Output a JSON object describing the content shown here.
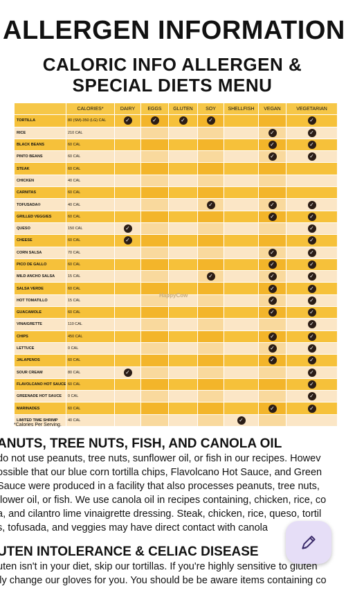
{
  "page_title": "ALLERGEN INFORMATION",
  "menu_title_line1": "CALORIC INFO ALLERGEN &",
  "menu_title_line2": "SPECIAL DIETS MENU",
  "table": {
    "headers": [
      "",
      "CALORIES*",
      "DAIRY",
      "EGGS",
      "GLUTEN",
      "SOY",
      "SHELLFISH",
      "VEGAN",
      "VEGETARIAN"
    ],
    "rows": [
      {
        "item": "TORTILLA",
        "cal": "80 (SM)-350 (LG) CAL",
        "flags": [
          1,
          1,
          1,
          1,
          0,
          0,
          1
        ]
      },
      {
        "item": "RICE",
        "cal": "210 CAL",
        "flags": [
          0,
          0,
          0,
          0,
          0,
          1,
          1
        ]
      },
      {
        "item": "BLACK BEANS",
        "cal": "60 CAL",
        "flags": [
          0,
          0,
          0,
          0,
          0,
          1,
          1
        ]
      },
      {
        "item": "PINTO BEANS",
        "cal": "60 CAL",
        "flags": [
          0,
          0,
          0,
          0,
          0,
          1,
          1
        ]
      },
      {
        "item": "STEAK",
        "cal": "60 CAL",
        "flags": [
          0,
          0,
          0,
          0,
          0,
          0,
          0
        ]
      },
      {
        "item": "CHICKEN",
        "cal": "40 CAL",
        "flags": [
          0,
          0,
          0,
          0,
          0,
          0,
          0
        ]
      },
      {
        "item": "CARNITAS",
        "cal": "60 CAL",
        "flags": [
          0,
          0,
          0,
          0,
          0,
          0,
          0
        ]
      },
      {
        "item": "TOFUSADA®",
        "cal": "40 CAL",
        "flags": [
          0,
          0,
          0,
          1,
          0,
          1,
          1
        ]
      },
      {
        "item": "GRILLED VEGGIES",
        "cal": "60 CAL",
        "flags": [
          0,
          0,
          0,
          0,
          0,
          1,
          1
        ]
      },
      {
        "item": "QUESO",
        "cal": "150 CAL",
        "flags": [
          1,
          0,
          0,
          0,
          0,
          0,
          1
        ]
      },
      {
        "item": "CHEESE",
        "cal": "60 CAL",
        "flags": [
          1,
          0,
          0,
          0,
          0,
          0,
          1
        ]
      },
      {
        "item": "CORN SALSA",
        "cal": "70 CAL",
        "flags": [
          0,
          0,
          0,
          0,
          0,
          1,
          1
        ]
      },
      {
        "item": "PICO DE GALLO",
        "cal": "60 CAL",
        "flags": [
          0,
          0,
          0,
          0,
          0,
          1,
          1
        ]
      },
      {
        "item": "MILD ANCHO SALSA",
        "cal": "15 CAL",
        "flags": [
          0,
          0,
          0,
          1,
          0,
          1,
          1
        ]
      },
      {
        "item": "SALSA VERDE",
        "cal": "60 CAL",
        "flags": [
          0,
          0,
          0,
          0,
          0,
          1,
          1
        ]
      },
      {
        "item": "HOT TOMATILLO",
        "cal": "15 CAL",
        "flags": [
          0,
          0,
          0,
          0,
          0,
          1,
          1
        ]
      },
      {
        "item": "GUACAMOLE",
        "cal": "60 CAL",
        "flags": [
          0,
          0,
          0,
          0,
          0,
          1,
          1
        ]
      },
      {
        "item": "VINAIGRETTE",
        "cal": "110 CAL",
        "flags": [
          0,
          0,
          0,
          0,
          0,
          0,
          1
        ]
      },
      {
        "item": "CHIPS",
        "cal": "450 CAL",
        "flags": [
          0,
          0,
          0,
          0,
          0,
          1,
          1
        ]
      },
      {
        "item": "LETTUCE",
        "cal": "0 CAL",
        "flags": [
          0,
          0,
          0,
          0,
          0,
          1,
          1
        ]
      },
      {
        "item": "JALAPENOS",
        "cal": "60 CAL",
        "flags": [
          0,
          0,
          0,
          0,
          0,
          1,
          1
        ]
      },
      {
        "item": "SOUR CREAM",
        "cal": "80 CAL",
        "flags": [
          1,
          0,
          0,
          0,
          0,
          0,
          1
        ]
      },
      {
        "item": "FLAVOLCANO HOT SAUCE",
        "cal": "60 CAL",
        "flags": [
          0,
          0,
          0,
          0,
          0,
          0,
          1
        ]
      },
      {
        "item": "GREENADE HOT SAUCE",
        "cal": "0 CAL",
        "flags": [
          0,
          0,
          0,
          0,
          0,
          0,
          1
        ]
      },
      {
        "item": "MARINADES",
        "cal": "60 CAL",
        "flags": [
          0,
          0,
          0,
          0,
          0,
          1,
          1
        ]
      },
      {
        "item": "LIMITED TIME SHRIMP",
        "cal": "40 CAL",
        "flags": [
          0,
          0,
          0,
          0,
          1,
          0,
          0
        ]
      }
    ]
  },
  "footnote": "*Calories Per Serving.",
  "watermark": "HappyCow",
  "section1": {
    "heading": "ANUTS, TREE NUTS, FISH, AND CANOLA OIL",
    "lines": [
      "do not use peanuts, tree nuts, sunflower oil, or fish in our recipes. Howev",
      "ossible that our blue corn tortilla chips, Flavolcano Hot Sauce, and Green",
      "Sauce were produced in a facility that also processes peanuts, tree nuts,",
      "flower oil, or fish. We use canola oil in recipes containing, chicken, rice, co",
      "a, and cilantro lime vinaigrette dressing. Steak, chicken, rice, queso, tortil",
      "s, tofusada, and veggies may have direct contact with canola"
    ]
  },
  "section2": {
    "heading": "UTEN INTOLERANCE & CELIAC DISEASE",
    "lines": [
      "uten isn't in your diet, skip our tortillas. If you're highly sensitive to gluten",
      "lly change our gloves for you. You should be be aware items containing co"
    ]
  },
  "fab": {
    "icon": "edit-pen-icon",
    "color": "#e6def7"
  }
}
